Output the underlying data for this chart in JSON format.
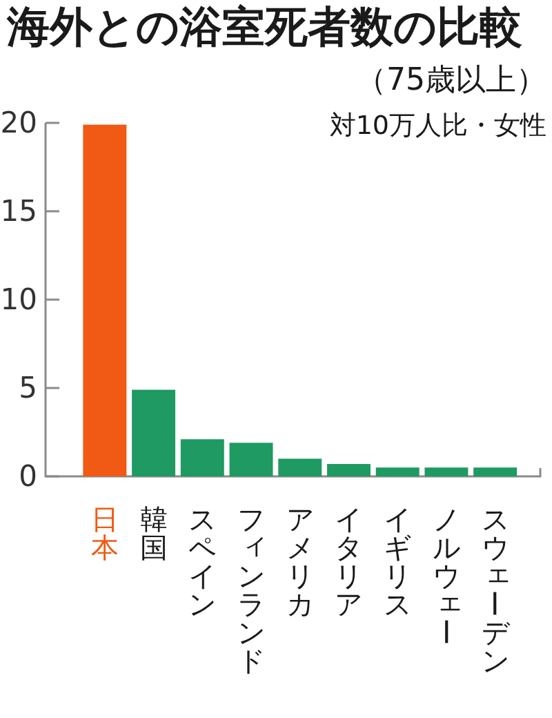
{
  "chart_data": {
    "type": "bar",
    "title": "海外との浴室死者数の比較",
    "subtitle": "（75歳以上）",
    "annotations": [
      "対10万人比・女性"
    ],
    "categories": [
      "日本",
      "韓国",
      "スペイン",
      "フィンランド",
      "アメリカ",
      "イタリア",
      "イギリス",
      "ノルウェー",
      "スウェーデン"
    ],
    "values": [
      19.9,
      4.9,
      2.1,
      1.9,
      1.0,
      0.7,
      0.5,
      0.5,
      0.5
    ],
    "colors": [
      "#f05a14",
      "#1e9a62",
      "#1e9a62",
      "#1e9a62",
      "#1e9a62",
      "#1e9a62",
      "#1e9a62",
      "#1e9a62",
      "#1e9a62"
    ],
    "ylim": [
      0,
      20
    ],
    "yticks": [
      0,
      5,
      10,
      15,
      20
    ]
  }
}
